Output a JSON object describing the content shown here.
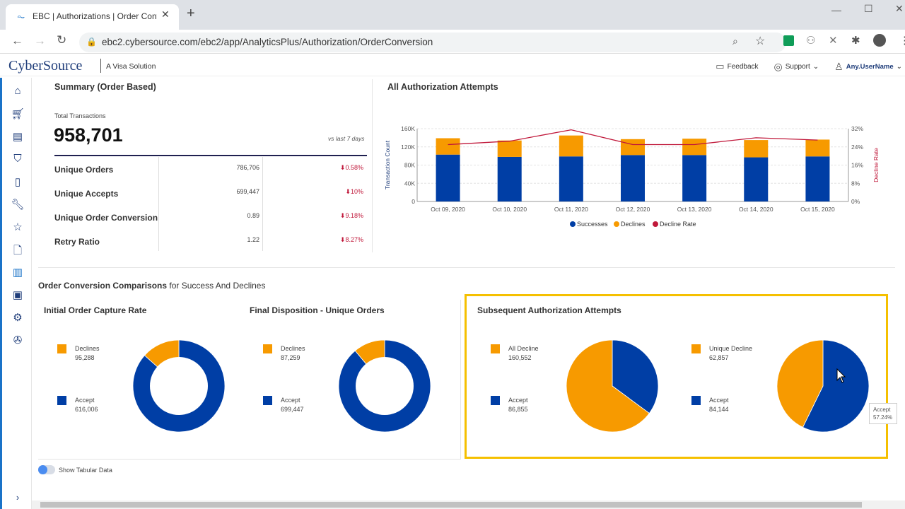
{
  "browser": {
    "tab_title": "EBC | Authorizations | Order Conversion",
    "url": "ebc2.cybersource.com/ebc2/app/AnalyticsPlus/Authorization/OrderConversion"
  },
  "header": {
    "logo": "CyberSource",
    "tagline": "A Visa Solution",
    "feedback": "Feedback",
    "support": "Support",
    "user": "Any.UserName"
  },
  "sidebar": {
    "icons": [
      "home-icon",
      "cart-icon",
      "payments-icon",
      "shield-icon",
      "device-icon",
      "wrench-icon",
      "star-icon",
      "document-icon",
      "analytics-icon",
      "report-icon",
      "gear-icon",
      "settings-advanced-icon"
    ],
    "expand_icon": "chevron-right-icon"
  },
  "summary": {
    "title": "Summary (Order Based)",
    "total_label": "Total Transactions",
    "total_value": "958,701",
    "compare": "vs last 7 days",
    "rows": [
      {
        "label": "Unique Orders",
        "value": "786,706",
        "change": "0.58%"
      },
      {
        "label": "Unique Accepts",
        "value": "699,447",
        "change": "10%"
      },
      {
        "label": "Unique Order Conversion",
        "value": "0.89",
        "change": "9.18%"
      },
      {
        "label": "Retry Ratio",
        "value": "1.22",
        "change": "8.27%"
      }
    ]
  },
  "chart_data": {
    "type": "bar",
    "title": "All Authorization Attempts",
    "stacked": true,
    "categories": [
      "Oct 09, 2020",
      "Oct 10, 2020",
      "Oct 11, 2020",
      "Oct 12, 2020",
      "Oct 13, 2020",
      "Oct 14, 2020",
      "Oct 15, 2020"
    ],
    "series": [
      {
        "name": "Successes",
        "values": [
          103000,
          98000,
          99000,
          102000,
          102000,
          97000,
          99000
        ],
        "color": "#003ea5"
      },
      {
        "name": "Declines",
        "values": [
          36000,
          36000,
          46000,
          35000,
          36000,
          38000,
          37000
        ],
        "color": "#f79a00"
      },
      {
        "name": "Decline Rate",
        "type": "line",
        "axis": "right",
        "values": [
          25,
          26.5,
          31.5,
          25,
          25,
          28,
          27
        ],
        "color": "#c0183a"
      }
    ],
    "ylabel": "Transaction Count",
    "y2label": "Decline Rate",
    "ylim": [
      0,
      160000
    ],
    "y2lim": [
      0,
      32
    ],
    "yticks": [
      "0",
      "40K",
      "80K",
      "120K",
      "160K"
    ],
    "y2ticks": [
      "0%",
      "8%",
      "16%",
      "24%",
      "32%"
    ],
    "grid": true,
    "legend": "bottom"
  },
  "comparisons": {
    "title": "Order Conversion Comparisons",
    "subtitle": "for Success And Declines",
    "charts": [
      {
        "title": "Initial Order Capture Rate",
        "kind": "donut",
        "items": [
          {
            "label": "Declines",
            "value": "95,288",
            "n": 95288,
            "color": "#f79a00"
          },
          {
            "label": "Accept",
            "value": "616,006",
            "n": 616006,
            "color": "#003ea5"
          }
        ]
      },
      {
        "title": "Final Disposition - Unique Orders",
        "kind": "donut",
        "items": [
          {
            "label": "Declines",
            "value": "87,259",
            "n": 87259,
            "color": "#f79a00"
          },
          {
            "label": "Accept",
            "value": "699,447",
            "n": 699447,
            "color": "#003ea5"
          }
        ]
      },
      {
        "title": "Subsequent Authorization Attempts",
        "kind": "pie",
        "items": [
          {
            "label": "All Decline",
            "value": "160,552",
            "n": 160552,
            "color": "#f79a00"
          },
          {
            "label": "Accept",
            "value": "86,855",
            "n": 86855,
            "color": "#003ea5"
          }
        ]
      },
      {
        "title": "",
        "kind": "pie",
        "items": [
          {
            "label": "Unique Decline",
            "value": "62,857",
            "n": 62857,
            "color": "#f79a00"
          },
          {
            "label": "Accept",
            "value": "84,144",
            "n": 84144,
            "color": "#003ea5"
          }
        ]
      }
    ],
    "tooltip": {
      "label": "Accept",
      "value": "57.24%"
    },
    "highlight_color": "#f5c000"
  },
  "toggle": {
    "label": "Show Tabular Data",
    "on": false
  }
}
